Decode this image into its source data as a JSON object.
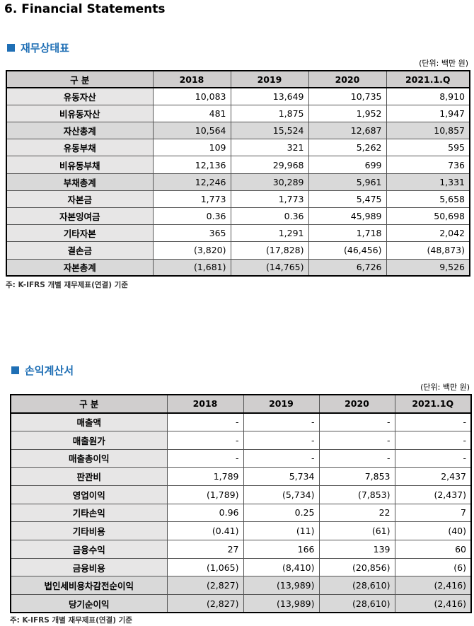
{
  "title": "6. Financial Statements",
  "sections": [
    {
      "heading": "재무상태표",
      "unit": "(단위: 백만 원)",
      "columns": [
        "구 분",
        "2018",
        "2019",
        "2020",
        "2021.1.Q"
      ],
      "rows": [
        {
          "label": "유동자산",
          "values": [
            "10,083",
            "13,649",
            "10,735",
            "8,910"
          ]
        },
        {
          "label": "비유동자산",
          "values": [
            "481",
            "1,875",
            "1,952",
            "1,947"
          ]
        },
        {
          "label": "자산총계",
          "values": [
            "10,564",
            "15,524",
            "12,687",
            "10,857"
          ],
          "highlight": true
        },
        {
          "label": "유동부채",
          "values": [
            "109",
            "321",
            "5,262",
            "595"
          ]
        },
        {
          "label": "비유동부채",
          "values": [
            "12,136",
            "29,968",
            "699",
            "736"
          ]
        },
        {
          "label": "부채총계",
          "values": [
            "12,246",
            "30,289",
            "5,961",
            "1,331"
          ],
          "highlight": true
        },
        {
          "label": "자본금",
          "values": [
            "1,773",
            "1,773",
            "5,475",
            "5,658"
          ]
        },
        {
          "label": "자본잉여금",
          "values": [
            "0.36",
            "0.36",
            "45,989",
            "50,698"
          ]
        },
        {
          "label": "기타자본",
          "values": [
            "365",
            "1,291",
            "1,718",
            "2,042"
          ]
        },
        {
          "label": "결손금",
          "values": [
            "(3,820)",
            "(17,828)",
            "(46,456)",
            "(48,873)"
          ]
        },
        {
          "label": "자본총계",
          "values": [
            "(1,681)",
            "(14,765)",
            "6,726",
            "9,526"
          ],
          "highlight": true
        }
      ],
      "note": "주: K-IFRS 개별 재무제표(연결) 기준"
    },
    {
      "heading": "손익계산서",
      "unit": "(단위: 백만 원)",
      "columns": [
        "구 분",
        "2018",
        "2019",
        "2020",
        "2021.1Q"
      ],
      "rows": [
        {
          "label": "매출액",
          "values": [
            "-",
            "-",
            "-",
            "-"
          ]
        },
        {
          "label": "매출원가",
          "values": [
            "-",
            "-",
            "-",
            "-"
          ]
        },
        {
          "label": "매출총이익",
          "values": [
            "-",
            "-",
            "-",
            "-"
          ]
        },
        {
          "label": "판관비",
          "values": [
            "1,789",
            "5,734",
            "7,853",
            "2,437"
          ]
        },
        {
          "label": "영업이익",
          "values": [
            "(1,789)",
            "(5,734)",
            "(7,853)",
            "(2,437)"
          ]
        },
        {
          "label": "기타손익",
          "values": [
            "0.96",
            "0.25",
            "22",
            "7"
          ]
        },
        {
          "label": "기타비용",
          "values": [
            "(0.41)",
            "(11)",
            "(61)",
            "(40)"
          ]
        },
        {
          "label": "금융수익",
          "values": [
            "27",
            "166",
            "139",
            "60"
          ]
        },
        {
          "label": "금융비용",
          "values": [
            "(1,065)",
            "(8,410)",
            "(20,856)",
            "(6)"
          ]
        },
        {
          "label": "법인세비용차감전순이익",
          "values": [
            "(2,827)",
            "(13,989)",
            "(28,610)",
            "(2,416)"
          ],
          "highlight": true
        },
        {
          "label": "당기순이익",
          "values": [
            "(2,827)",
            "(13,989)",
            "(28,610)",
            "(2,416)"
          ],
          "highlight": true
        }
      ],
      "note": "주: K-IFRS 개별 재무제표(연결) 기준"
    }
  ]
}
